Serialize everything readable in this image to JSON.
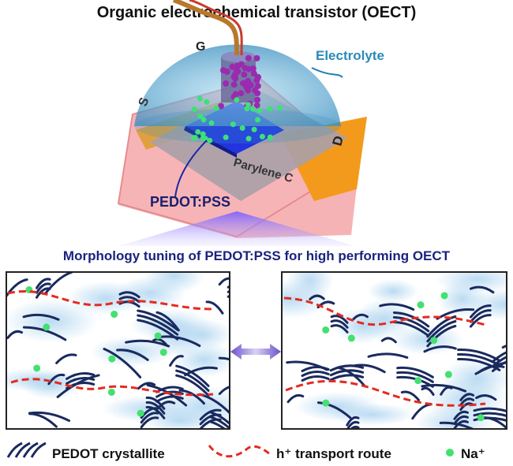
{
  "title": "Organic electrochemical transistor (OECT)",
  "device": {
    "gate_label": "G",
    "electrolyte_label": "Electrolyte",
    "source_label": "S",
    "drain_label": "D",
    "substrate_label": "Parylene C",
    "channel_label": "PEDOT:PSS"
  },
  "subtitle": "Morphology tuning of PEDOT:PSS for high performing OECT",
  "legend": {
    "crystallite": "PEDOT crystallite",
    "transport": "h⁺ transport route",
    "ion": "Na⁺"
  }
}
